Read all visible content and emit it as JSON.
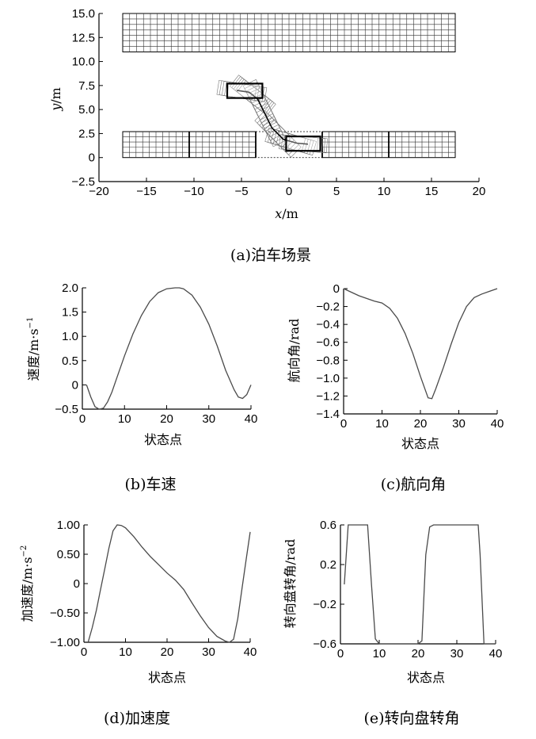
{
  "chart_data": [
    {
      "id": "a",
      "type": "scatter",
      "caption": "(a)泊车场景",
      "xlabel_var": "x",
      "xlabel_unit": "/m",
      "ylabel_var": "y",
      "ylabel_unit": "/m",
      "xlim": [
        -20,
        20
      ],
      "ylim": [
        -2.5,
        15.0
      ],
      "xticks": [
        "−20",
        "−15",
        "−10",
        "−5",
        "0",
        "5",
        "10",
        "15",
        "20"
      ],
      "xtick_values": [
        -20,
        -15,
        -10,
        -5,
        0,
        5,
        10,
        15,
        20
      ],
      "yticks": [
        "−2.5",
        "0",
        "2.5",
        "5.0",
        "7.5",
        "10.0",
        "12.5",
        "15.0"
      ],
      "ytick_values": [
        -2.5,
        0,
        2.5,
        5.0,
        7.5,
        10.0,
        12.5,
        15.0
      ],
      "top_lane": {
        "x": [
          -17.5,
          17.5
        ],
        "y": [
          11.0,
          15.0
        ]
      },
      "bottom_lane": {
        "x": [
          -17.5,
          17.5
        ],
        "y": [
          0,
          2.7
        ],
        "dividers": [
          -10.5,
          -3.5,
          3.5,
          10.5
        ]
      },
      "target_slot": {
        "x": [
          -3.5,
          3.5
        ],
        "y": [
          0,
          2.7
        ]
      },
      "start_vehicle": {
        "x": [
          -6.5,
          -2.8
        ],
        "y": [
          6.2,
          7.7
        ]
      },
      "end_vehicle": {
        "x": [
          -0.3,
          3.3
        ],
        "y": [
          0.7,
          2.2
        ]
      },
      "path_x": [
        -5.5,
        -4.2,
        -3.3,
        -2.6,
        -1.8,
        -0.6,
        0.8,
        2.0
      ],
      "path_y": [
        7.0,
        6.8,
        6.1,
        4.7,
        3.1,
        1.9,
        1.5,
        1.4
      ]
    },
    {
      "id": "b",
      "type": "line",
      "caption": "(b)车速",
      "xlabel": "状态点",
      "ylabel": "速度/m·s",
      "ylabel_sup": "−1",
      "xlim": [
        0,
        40
      ],
      "ylim": [
        -0.5,
        2.0
      ],
      "xticks": [
        "0",
        "10",
        "20",
        "30",
        "40"
      ],
      "xtick_values": [
        0,
        10,
        20,
        30,
        40
      ],
      "yticks": [
        "−0.5",
        "0",
        "0.5",
        "1.0",
        "1.5",
        "2.0"
      ],
      "ytick_values": [
        -0.5,
        0,
        0.5,
        1.0,
        1.5,
        2.0
      ],
      "x": [
        1,
        2,
        3,
        4,
        5,
        6,
        7,
        8,
        10,
        12,
        14,
        16,
        18,
        20,
        22,
        23,
        24,
        26,
        28,
        30,
        32,
        34,
        36,
        37,
        38,
        39,
        40
      ],
      "y": [
        0.0,
        -0.25,
        -0.45,
        -0.5,
        -0.48,
        -0.35,
        -0.15,
        0.1,
        0.6,
        1.05,
        1.43,
        1.72,
        1.9,
        1.98,
        2.0,
        2.0,
        1.98,
        1.85,
        1.6,
        1.25,
        0.8,
        0.3,
        -0.1,
        -0.25,
        -0.28,
        -0.2,
        0.0
      ]
    },
    {
      "id": "c",
      "type": "line",
      "caption": "(c)航向角",
      "xlabel": "状态点",
      "ylabel": "航向角/rad",
      "xlim": [
        0,
        40
      ],
      "ylim": [
        -1.4,
        0
      ],
      "xticks": [
        "0",
        "10",
        "20",
        "30",
        "40"
      ],
      "xtick_values": [
        0,
        10,
        20,
        30,
        40
      ],
      "yticks": [
        "−1.4",
        "−1.2",
        "−1.0",
        "−0.8",
        "−0.6",
        "−0.4",
        "−0.2",
        "0"
      ],
      "ytick_values": [
        -1.4,
        -1.2,
        -1.0,
        -0.8,
        -0.6,
        -0.4,
        -0.2,
        0
      ],
      "x": [
        0,
        2,
        4,
        6,
        8,
        10,
        12,
        14,
        16,
        18,
        20,
        22,
        23,
        24,
        26,
        28,
        30,
        32,
        34,
        36,
        38,
        40
      ],
      "y": [
        0.0,
        -0.04,
        -0.08,
        -0.11,
        -0.14,
        -0.16,
        -0.22,
        -0.33,
        -0.5,
        -0.72,
        -0.98,
        -1.22,
        -1.23,
        -1.12,
        -0.88,
        -0.62,
        -0.38,
        -0.2,
        -0.1,
        -0.06,
        -0.03,
        0.0
      ]
    },
    {
      "id": "d",
      "type": "line",
      "caption": "(d)加速度",
      "xlabel": "状态点",
      "ylabel": "加速度/m·s",
      "ylabel_sup": "−2",
      "xlim": [
        0,
        40
      ],
      "ylim": [
        -1.0,
        1.0
      ],
      "xticks": [
        "0",
        "10",
        "20",
        "30",
        "40"
      ],
      "xtick_values": [
        0,
        10,
        20,
        30,
        40
      ],
      "yticks": [
        "−1.00",
        "−0.50",
        "0",
        "0.50",
        "1.00"
      ],
      "ytick_values": [
        -1.0,
        -0.5,
        0,
        0.5,
        1.0
      ],
      "x": [
        1,
        2,
        3,
        4,
        5,
        6,
        7,
        8,
        9,
        10,
        12,
        14,
        16,
        18,
        20,
        22,
        24,
        26,
        28,
        30,
        32,
        34,
        35,
        36,
        37,
        38,
        39,
        40
      ],
      "y": [
        -1.0,
        -0.75,
        -0.45,
        -0.1,
        0.25,
        0.6,
        0.9,
        1.0,
        0.99,
        0.95,
        0.8,
        0.62,
        0.46,
        0.32,
        0.18,
        0.06,
        -0.1,
        -0.33,
        -0.55,
        -0.75,
        -0.9,
        -0.98,
        -1.0,
        -0.95,
        -0.6,
        -0.1,
        0.4,
        0.88
      ]
    },
    {
      "id": "e",
      "type": "line",
      "caption": "(e)转向盘转角",
      "xlabel": "状态点",
      "ylabel": "转向盘转角/rad",
      "xlim": [
        0,
        40
      ],
      "ylim": [
        -0.6,
        0.6
      ],
      "xticks": [
        "0",
        "10",
        "20",
        "30",
        "40"
      ],
      "xtick_values": [
        0,
        10,
        20,
        30,
        40
      ],
      "yticks": [
        "−0.6",
        "−0.2",
        "0.2",
        "0.6"
      ],
      "ytick_values": [
        -0.6,
        -0.2,
        0.2,
        0.6
      ],
      "x": [
        1,
        2,
        3,
        6.5,
        7,
        8,
        9,
        10,
        12,
        16,
        20,
        21,
        22,
        23,
        24,
        30,
        35.5,
        36,
        37,
        38,
        40
      ],
      "y": [
        0.0,
        0.6,
        0.6,
        0.6,
        0.6,
        0.0,
        -0.55,
        -0.6,
        -0.6,
        -0.6,
        -0.6,
        -0.57,
        0.3,
        0.58,
        0.6,
        0.6,
        0.6,
        0.3,
        -0.6,
        -0.6,
        -0.6
      ]
    }
  ]
}
